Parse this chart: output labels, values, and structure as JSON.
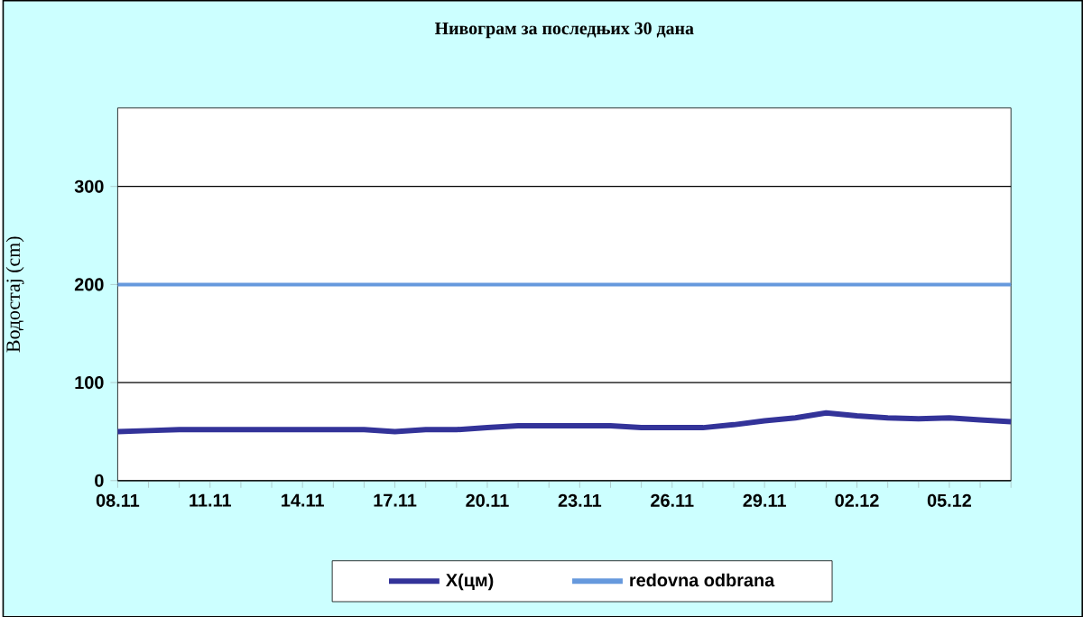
{
  "chart_data": {
    "type": "line",
    "title": "Нивограм за последњих 30 дана",
    "ylabel": "Водостај (cm)",
    "categories": [
      "08.11",
      null,
      null,
      "11.11",
      null,
      null,
      "14.11",
      null,
      null,
      "17.11",
      null,
      null,
      "20.11",
      null,
      null,
      "23.11",
      null,
      null,
      "26.11",
      null,
      null,
      "29.11",
      null,
      null,
      "02.12",
      null,
      null,
      "05.12",
      null,
      null
    ],
    "series": [
      {
        "name": "X(цм)",
        "color": "#333399",
        "values": [
          50,
          51,
          52,
          52,
          52,
          52,
          52,
          52,
          52,
          50,
          52,
          52,
          54,
          56,
          56,
          56,
          56,
          54,
          54,
          54,
          57,
          61,
          64,
          69,
          66,
          64,
          63,
          64,
          62,
          60
        ]
      }
    ],
    "ylim": [
      0,
      380
    ],
    "yticks": [
      0,
      100,
      200,
      300
    ],
    "grid": "y",
    "legend": "bottom",
    "ref_lines": [
      {
        "axis": "y",
        "value": 200,
        "label": "redovna odbrana",
        "color": "#6699dd"
      }
    ]
  }
}
